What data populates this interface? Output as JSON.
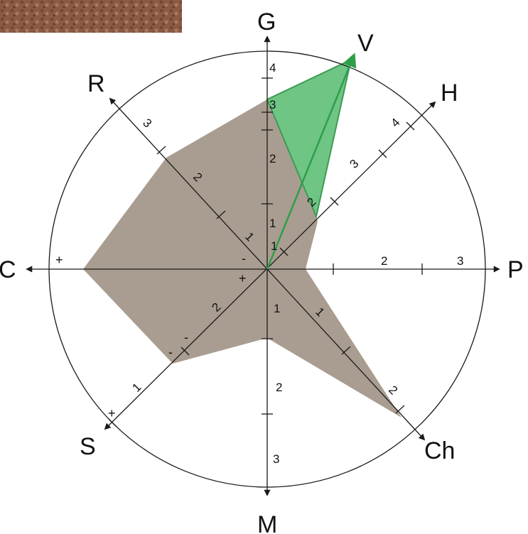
{
  "colors": {
    "main_polygon": "#a89d90",
    "v_polygon": "#63c07a",
    "v_arrow": "#2e9e4b",
    "lines": "#1a1a1a",
    "texture_patch": "#8c5a44"
  },
  "texture_patch": "rock-texture-image",
  "axes": {
    "G": {
      "label": "G"
    },
    "V": {
      "label": "V"
    },
    "H": {
      "label": "H"
    },
    "P": {
      "label": "P"
    },
    "Ch": {
      "label": "Ch"
    },
    "M": {
      "label": "M"
    },
    "S": {
      "label": "S"
    },
    "C": {
      "label": "C"
    },
    "R": {
      "label": "R"
    }
  },
  "ticks": {
    "G": [
      "1",
      "2",
      "3",
      "4"
    ],
    "H": [
      "2",
      "3",
      "4"
    ],
    "P": [
      "2",
      "3"
    ],
    "Ch": [
      "1",
      "2"
    ],
    "M": [
      "1",
      "2",
      "3"
    ],
    "S": [
      "2",
      "1"
    ],
    "R": [
      "1",
      "2",
      "3"
    ],
    "V": [
      "1"
    ]
  },
  "signs": {
    "plus": "+",
    "minus": "-"
  }
}
